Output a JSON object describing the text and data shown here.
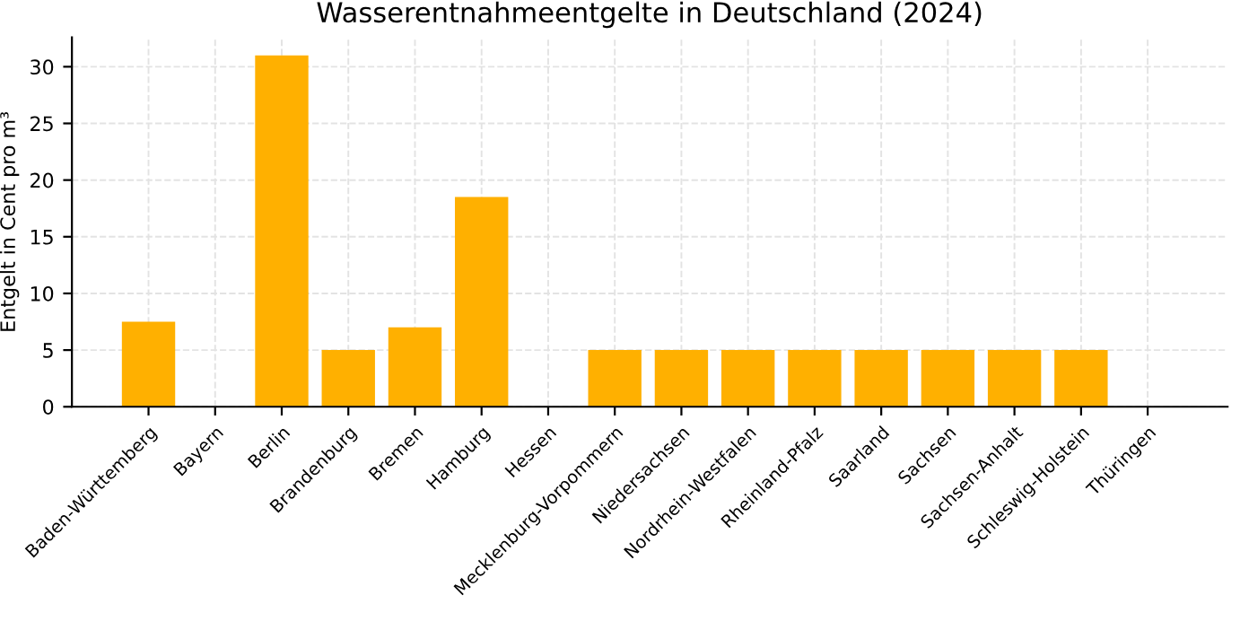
{
  "chart_data": {
    "type": "bar",
    "title": "Wasserentnahmeentgelte in Deutschland (2024)",
    "ylabel": "Entgelt in Cent pro m³",
    "categories": [
      "Baden-Württemberg",
      "Bayern",
      "Berlin",
      "Brandenburg",
      "Bremen",
      "Hamburg",
      "Hessen",
      "Mecklenburg-Vorpommern",
      "Niedersachsen",
      "Nordrhein-Westfalen",
      "Rheinland-Pfalz",
      "Saarland",
      "Sachsen",
      "Sachsen-Anhalt",
      "Schleswig-Holstein",
      "Thüringen"
    ],
    "values": [
      7.5,
      0,
      31,
      5,
      7,
      18.5,
      0,
      5,
      5,
      5,
      5,
      5,
      5,
      5,
      5,
      0
    ],
    "color": "#ffb000",
    "ylim": [
      0,
      32.6
    ],
    "yticks": [
      0,
      5,
      10,
      15,
      20,
      25,
      30
    ],
    "grid": true
  }
}
